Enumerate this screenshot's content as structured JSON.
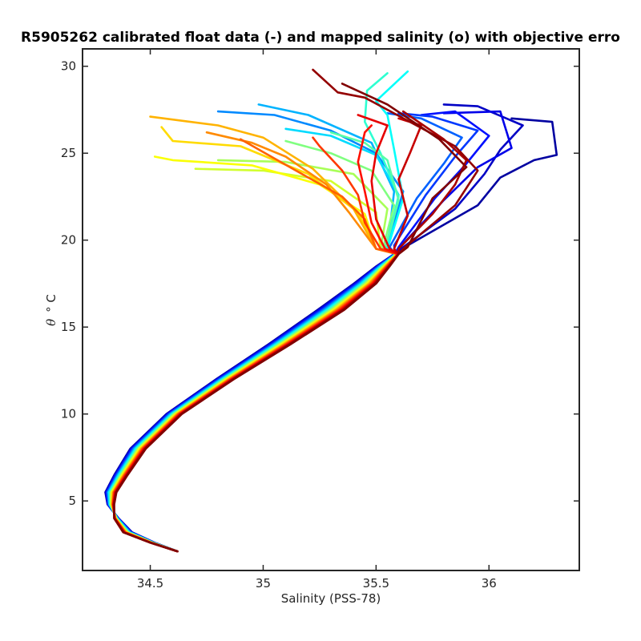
{
  "chart_data": {
    "type": "line",
    "title": "R5905262 calibrated float data (-) and mapped salinity (o) with objective erro",
    "xlabel": "Salinity (PSS-78)",
    "ylabel_symbol": "θ",
    "ylabel_unit": "° C",
    "xlim": [
      34.2,
      36.4
    ],
    "ylim": [
      1.0,
      31.0
    ],
    "x_ticks": [
      34.5,
      35,
      35.5,
      36
    ],
    "x_tick_labels": [
      "34.5",
      "35",
      "35.5",
      "36"
    ],
    "y_ticks": [
      5,
      10,
      15,
      20,
      25,
      30
    ],
    "y_tick_labels": [
      "5",
      "10",
      "15",
      "20",
      "25",
      "30"
    ],
    "grid": false,
    "colormap": "jet",
    "colormap_stops": [
      "#00008f",
      "#0000ff",
      "#00ffff",
      "#ffff00",
      "#ff0000",
      "#800000"
    ],
    "deep_profile_theta": [
      2.1,
      2.6,
      3.2,
      4.0,
      4.8,
      5.5,
      6.5,
      8.0,
      10.0,
      12.0,
      14.0,
      16.0,
      17.5,
      18.5,
      19.2
    ],
    "deep_profile_salinity_early": [
      34.62,
      34.52,
      34.42,
      34.36,
      34.31,
      34.3,
      34.34,
      34.41,
      34.57,
      34.79,
      35.02,
      35.24,
      35.4,
      35.5,
      35.58
    ],
    "deep_profile_salinity_late": [
      34.62,
      34.5,
      34.38,
      34.34,
      34.34,
      34.35,
      34.4,
      34.48,
      34.64,
      34.87,
      35.12,
      35.36,
      35.5,
      35.56,
      35.6
    ],
    "series": [
      {
        "profile_fraction": 0.02,
        "surface": [
          [
            35.6,
            19.4
          ],
          [
            35.95,
            22.0
          ],
          [
            36.05,
            23.6
          ],
          [
            36.2,
            24.6
          ],
          [
            36.3,
            24.9
          ],
          [
            36.28,
            26.8
          ],
          [
            36.1,
            27.0
          ]
        ]
      },
      {
        "profile_fraction": 0.06,
        "surface": [
          [
            35.6,
            19.4
          ],
          [
            35.85,
            21.8
          ],
          [
            35.98,
            23.8
          ],
          [
            36.05,
            25.2
          ],
          [
            36.15,
            26.6
          ],
          [
            35.95,
            27.7
          ],
          [
            35.8,
            27.8
          ]
        ]
      },
      {
        "profile_fraction": 0.1,
        "surface": [
          [
            35.6,
            19.5
          ],
          [
            35.8,
            22.3
          ],
          [
            35.95,
            24.2
          ],
          [
            36.1,
            25.3
          ],
          [
            36.05,
            27.4
          ],
          [
            35.8,
            27.3
          ]
        ]
      },
      {
        "profile_fraction": 0.14,
        "surface": [
          [
            35.6,
            19.6
          ],
          [
            35.76,
            22.4
          ],
          [
            35.9,
            24.4
          ],
          [
            36.0,
            26.0
          ],
          [
            35.85,
            27.4
          ],
          [
            35.7,
            27.2
          ]
        ]
      },
      {
        "profile_fraction": 0.18,
        "surface": [
          [
            35.58,
            19.7
          ],
          [
            35.72,
            22.6
          ],
          [
            35.85,
            24.8
          ],
          [
            35.95,
            26.3
          ],
          [
            35.75,
            27.1
          ],
          [
            35.6,
            27.3
          ]
        ]
      },
      {
        "profile_fraction": 0.22,
        "surface": [
          [
            35.56,
            19.6
          ],
          [
            35.68,
            22.4
          ],
          [
            35.8,
            24.4
          ],
          [
            35.88,
            25.9
          ],
          [
            35.7,
            27.0
          ],
          [
            35.55,
            27.3
          ]
        ]
      },
      {
        "profile_fraction": 0.26,
        "surface": [
          [
            35.55,
            19.6
          ],
          [
            35.62,
            22.8
          ],
          [
            35.5,
            25.0
          ],
          [
            35.3,
            26.3
          ],
          [
            35.05,
            27.2
          ],
          [
            34.8,
            27.4
          ]
        ]
      },
      {
        "profile_fraction": 0.3,
        "surface": [
          [
            35.55,
            19.5
          ],
          [
            35.58,
            22.8
          ],
          [
            35.48,
            25.6
          ],
          [
            35.2,
            27.2
          ],
          [
            34.98,
            27.8
          ]
        ]
      },
      {
        "profile_fraction": 0.34,
        "surface": [
          [
            35.55,
            19.5
          ],
          [
            35.6,
            22.6
          ],
          [
            35.5,
            24.9
          ],
          [
            35.3,
            26.0
          ],
          [
            35.1,
            26.4
          ]
        ]
      },
      {
        "profile_fraction": 0.38,
        "surface": [
          [
            35.55,
            19.5
          ],
          [
            35.62,
            22.4
          ],
          [
            35.58,
            25.2
          ],
          [
            35.55,
            27.2
          ],
          [
            35.5,
            28.0
          ],
          [
            35.64,
            29.7
          ]
        ]
      },
      {
        "profile_fraction": 0.42,
        "surface": [
          [
            35.54,
            19.5
          ],
          [
            35.6,
            22.5
          ],
          [
            35.52,
            25.0
          ],
          [
            35.45,
            26.8
          ],
          [
            35.46,
            28.6
          ],
          [
            35.55,
            29.6
          ]
        ]
      },
      {
        "profile_fraction": 0.46,
        "surface": [
          [
            35.54,
            19.5
          ],
          [
            35.6,
            22.3
          ],
          [
            35.55,
            24.6
          ],
          [
            35.45,
            25.6
          ],
          [
            35.3,
            26.2
          ]
        ]
      },
      {
        "profile_fraction": 0.5,
        "surface": [
          [
            35.53,
            19.5
          ],
          [
            35.58,
            22.0
          ],
          [
            35.48,
            24.0
          ],
          [
            35.3,
            25.0
          ],
          [
            35.1,
            25.7
          ]
        ]
      },
      {
        "profile_fraction": 0.54,
        "surface": [
          [
            35.52,
            19.5
          ],
          [
            35.55,
            21.8
          ],
          [
            35.4,
            23.8
          ],
          [
            35.1,
            24.5
          ],
          [
            34.8,
            24.6
          ]
        ]
      },
      {
        "profile_fraction": 0.58,
        "surface": [
          [
            35.52,
            19.5
          ],
          [
            35.5,
            21.6
          ],
          [
            35.3,
            23.4
          ],
          [
            35.0,
            24.0
          ],
          [
            34.7,
            24.1
          ]
        ]
      },
      {
        "profile_fraction": 0.62,
        "surface": [
          [
            35.5,
            19.5
          ],
          [
            35.45,
            21.5
          ],
          [
            35.25,
            23.2
          ],
          [
            34.95,
            24.3
          ],
          [
            34.6,
            24.6
          ],
          [
            34.52,
            24.8
          ]
        ]
      },
      {
        "profile_fraction": 0.66,
        "surface": [
          [
            35.5,
            19.5
          ],
          [
            35.42,
            21.6
          ],
          [
            35.2,
            23.8
          ],
          [
            34.9,
            25.4
          ],
          [
            34.6,
            25.7
          ],
          [
            34.55,
            26.5
          ]
        ]
      },
      {
        "profile_fraction": 0.7,
        "surface": [
          [
            35.5,
            19.5
          ],
          [
            35.4,
            21.8
          ],
          [
            35.22,
            24.1
          ],
          [
            35.0,
            25.9
          ],
          [
            34.8,
            26.6
          ],
          [
            34.5,
            27.1
          ]
        ]
      },
      {
        "profile_fraction": 0.74,
        "surface": [
          [
            35.5,
            19.5
          ],
          [
            35.38,
            21.6
          ],
          [
            35.28,
            23.2
          ],
          [
            35.1,
            24.8
          ],
          [
            34.95,
            25.6
          ],
          [
            34.75,
            26.2
          ]
        ]
      },
      {
        "profile_fraction": 0.78,
        "surface": [
          [
            35.5,
            19.5
          ],
          [
            35.45,
            21.2
          ],
          [
            35.35,
            22.5
          ],
          [
            35.2,
            23.6
          ],
          [
            35.05,
            24.7
          ],
          [
            34.9,
            25.8
          ]
        ]
      },
      {
        "profile_fraction": 0.82,
        "surface": [
          [
            35.52,
            19.5
          ],
          [
            35.45,
            21.0
          ],
          [
            35.42,
            22.6
          ],
          [
            35.35,
            24.0
          ],
          [
            35.25,
            25.4
          ],
          [
            35.22,
            25.9
          ]
        ]
      },
      {
        "profile_fraction": 0.86,
        "surface": [
          [
            35.54,
            19.5
          ],
          [
            35.48,
            21.0
          ],
          [
            35.45,
            22.8
          ],
          [
            35.42,
            24.5
          ],
          [
            35.45,
            26.2
          ],
          [
            35.48,
            26.6
          ]
        ]
      },
      {
        "profile_fraction": 0.9,
        "surface": [
          [
            35.56,
            19.5
          ],
          [
            35.5,
            21.2
          ],
          [
            35.48,
            23.4
          ],
          [
            35.5,
            25.0
          ],
          [
            35.55,
            26.6
          ],
          [
            35.42,
            27.2
          ]
        ]
      },
      {
        "profile_fraction": 0.93,
        "surface": [
          [
            35.58,
            19.5
          ],
          [
            35.64,
            21.4
          ],
          [
            35.6,
            23.5
          ],
          [
            35.65,
            25.0
          ],
          [
            35.7,
            26.6
          ],
          [
            35.6,
            27.0
          ]
        ]
      },
      {
        "profile_fraction": 0.96,
        "surface": [
          [
            35.6,
            19.5
          ],
          [
            35.75,
            21.5
          ],
          [
            35.85,
            23.2
          ],
          [
            35.9,
            24.6
          ],
          [
            35.8,
            25.8
          ],
          [
            35.62,
            27.4
          ]
        ]
      },
      {
        "profile_fraction": 0.98,
        "surface": [
          [
            35.62,
            19.5
          ],
          [
            35.85,
            22.0
          ],
          [
            35.95,
            24.0
          ],
          [
            35.85,
            25.4
          ],
          [
            35.65,
            26.8
          ],
          [
            35.45,
            28.2
          ],
          [
            35.33,
            28.5
          ],
          [
            35.22,
            29.8
          ]
        ]
      },
      {
        "profile_fraction": 1.0,
        "surface": [
          [
            35.64,
            19.6
          ],
          [
            35.75,
            22.4
          ],
          [
            35.9,
            24.2
          ],
          [
            35.78,
            25.8
          ],
          [
            35.55,
            27.8
          ],
          [
            35.35,
            29.0
          ]
        ]
      }
    ]
  }
}
